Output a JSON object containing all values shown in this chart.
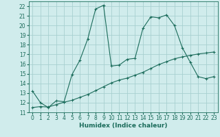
{
  "xlabel": "Humidex (Indice chaleur)",
  "background_color": "#d0ecec",
  "grid_color": "#a8d0d0",
  "line_color": "#1a6b5a",
  "xlim": [
    -0.5,
    23.5
  ],
  "ylim": [
    11,
    22.5
  ],
  "xticks": [
    0,
    1,
    2,
    3,
    4,
    5,
    6,
    7,
    8,
    9,
    10,
    11,
    12,
    13,
    14,
    15,
    16,
    17,
    18,
    19,
    20,
    21,
    22,
    23
  ],
  "yticks": [
    11,
    12,
    13,
    14,
    15,
    16,
    17,
    18,
    19,
    20,
    21,
    22
  ],
  "series1_x": [
    0,
    1,
    2,
    3,
    4,
    5,
    6,
    7,
    8,
    9,
    10,
    11,
    12,
    13,
    14,
    15,
    16,
    17,
    18,
    19,
    20,
    21,
    22,
    23
  ],
  "series1_y": [
    13.2,
    12.0,
    11.5,
    12.2,
    12.1,
    14.9,
    16.4,
    18.6,
    21.7,
    22.1,
    15.8,
    15.9,
    16.5,
    16.6,
    19.7,
    20.9,
    20.8,
    21.1,
    20.0,
    17.7,
    16.2,
    14.7,
    14.5,
    14.7
  ],
  "series2_x": [
    0,
    1,
    2,
    3,
    4,
    5,
    6,
    7,
    8,
    9,
    10,
    11,
    12,
    13,
    14,
    15,
    16,
    17,
    18,
    19,
    20,
    21,
    22,
    23
  ],
  "series2_y": [
    11.5,
    11.6,
    11.55,
    11.8,
    12.05,
    12.25,
    12.55,
    12.85,
    13.25,
    13.65,
    14.05,
    14.35,
    14.55,
    14.85,
    15.15,
    15.55,
    15.95,
    16.25,
    16.55,
    16.75,
    16.9,
    17.05,
    17.15,
    17.25
  ],
  "font_color": "#1a6b5a",
  "tick_font_size": 5.5,
  "label_font_size": 6.5
}
